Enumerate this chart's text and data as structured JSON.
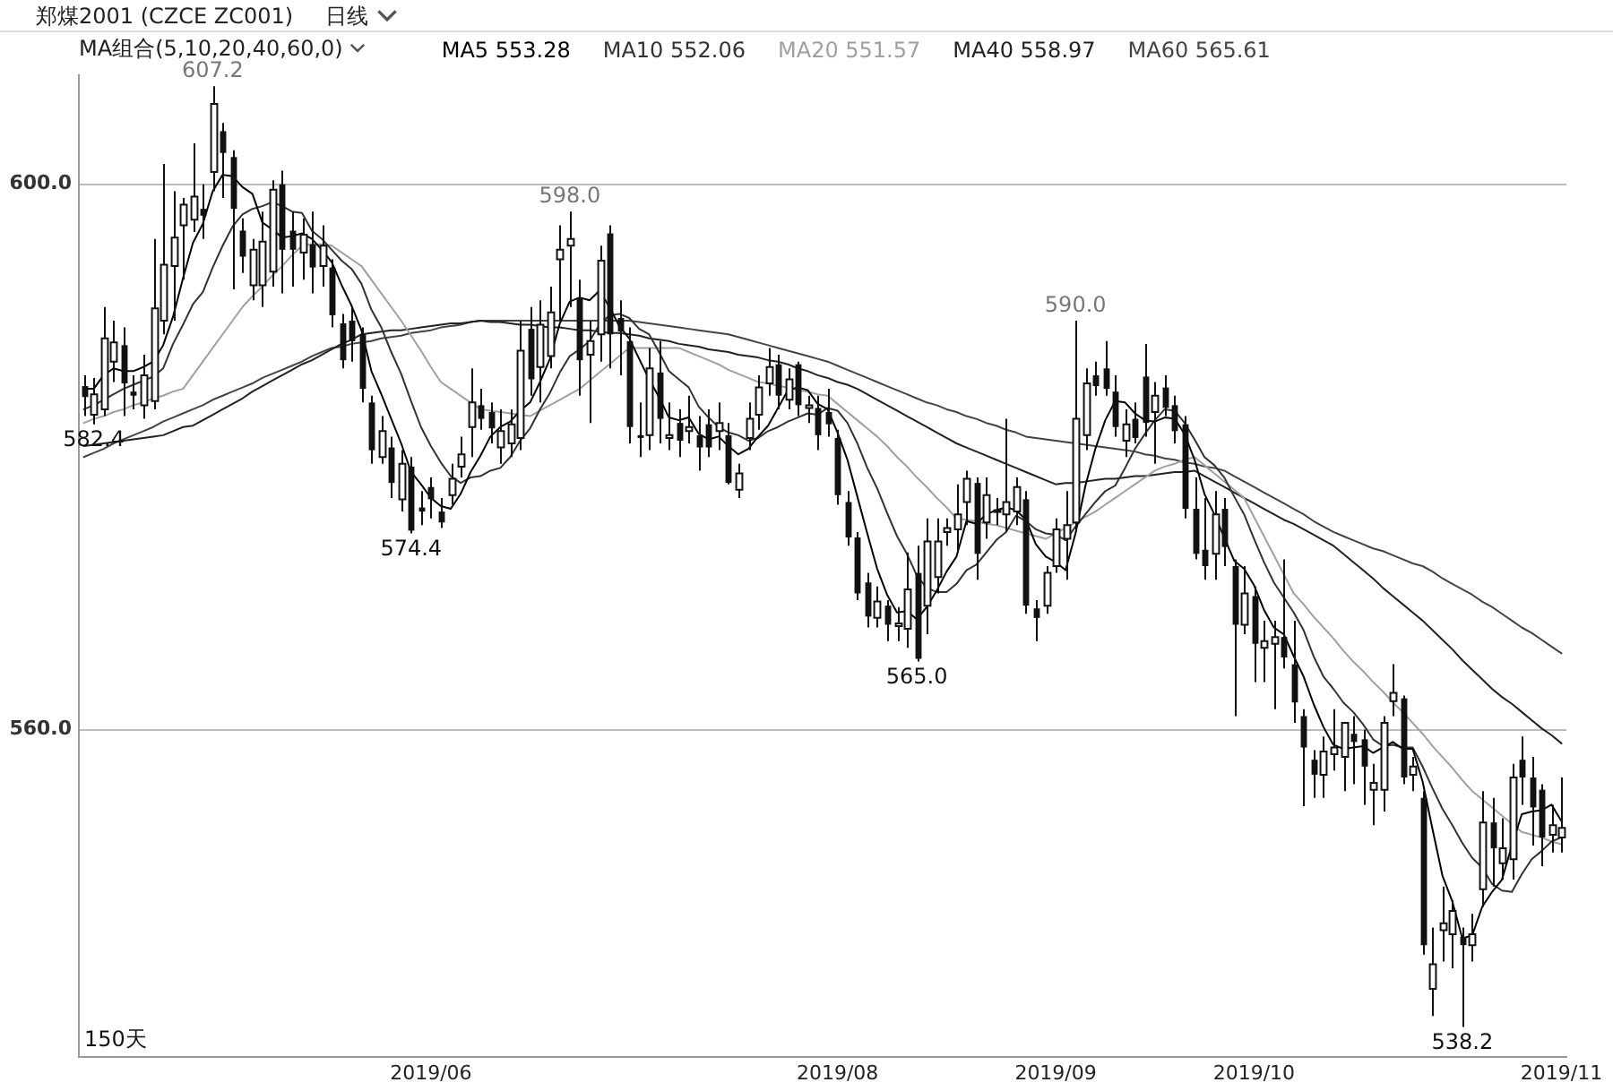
{
  "chart_data": {
    "type": "candlestick",
    "title": "郑煤2001 (CZCE ZC001)",
    "subtitle": "MA组合(5,10,20,40,60,0)",
    "categories": [
      null,
      null,
      null,
      null,
      null,
      null,
      null,
      null,
      null,
      null,
      null,
      null,
      null,
      null,
      null,
      null,
      null,
      null,
      null,
      null,
      null,
      null,
      null,
      null,
      null,
      null,
      null,
      null,
      null,
      null,
      null,
      null,
      null,
      null,
      null,
      "2019/06",
      null,
      null,
      null,
      null,
      null,
      null,
      null,
      null,
      null,
      null,
      null,
      null,
      null,
      null,
      null,
      null,
      null,
      null,
      null,
      null,
      null,
      null,
      null,
      null,
      null,
      null,
      null,
      null,
      null,
      null,
      null,
      null,
      null,
      null,
      null,
      null,
      null,
      null,
      null,
      null,
      "2019/08",
      null,
      null,
      null,
      null,
      null,
      null,
      null,
      null,
      null,
      null,
      null,
      null,
      null,
      null,
      null,
      null,
      null,
      null,
      null,
      null,
      null,
      "2019/09",
      null,
      null,
      null,
      null,
      null,
      null,
      null,
      null,
      null,
      null,
      null,
      null,
      null,
      null,
      null,
      null,
      null,
      null,
      null,
      "2019/10",
      null,
      null,
      null,
      null,
      null,
      null,
      null,
      null,
      null,
      null,
      null,
      null,
      null,
      null,
      null,
      null,
      null,
      null,
      null,
      null,
      null,
      null,
      null,
      null,
      null,
      null,
      null,
      null,
      null,
      null,
      "2019/11"
    ],
    "ohlc": [
      [
        585.2,
        586.0,
        583.0,
        584.4
      ],
      [
        583.1,
        585.8,
        582.4,
        584.6
      ],
      [
        583.5,
        591.0,
        583.0,
        588.7
      ],
      [
        587.0,
        590.0,
        585.5,
        588.4
      ],
      [
        588.2,
        589.5,
        583.0,
        585.4
      ],
      [
        584.8,
        586.0,
        583.5,
        584.5
      ],
      [
        583.8,
        587.5,
        582.8,
        586.0
      ],
      [
        584.1,
        596.0,
        583.5,
        590.9
      ],
      [
        590.0,
        601.5,
        589.0,
        594.1
      ],
      [
        594.0,
        599.5,
        590.0,
        596.1
      ],
      [
        597.0,
        599.0,
        593.0,
        598.5
      ],
      [
        597.4,
        603.0,
        596.5,
        599.1
      ],
      [
        598.2,
        600.0,
        596.0,
        597.7
      ],
      [
        600.9,
        607.2,
        599.5,
        605.9
      ],
      [
        603.9,
        604.5,
        599.0,
        602.3
      ],
      [
        602.0,
        602.5,
        592.3,
        598.2
      ],
      [
        596.6,
        597.5,
        593.5,
        594.7
      ],
      [
        592.6,
        596.0,
        591.5,
        595.2
      ],
      [
        592.6,
        598.0,
        591.0,
        595.8
      ],
      [
        593.6,
        600.3,
        592.5,
        599.6
      ],
      [
        600.0,
        601.0,
        592.0,
        595.2
      ],
      [
        596.6,
        598.0,
        592.5,
        595.2
      ],
      [
        595.0,
        597.5,
        593.0,
        596.3
      ],
      [
        595.6,
        598.0,
        592.0,
        593.9
      ],
      [
        594.0,
        597.0,
        592.5,
        595.5
      ],
      [
        593.9,
        594.5,
        589.5,
        590.4
      ],
      [
        589.8,
        590.5,
        586.5,
        587.1
      ],
      [
        590.0,
        591.0,
        587.0,
        588.5
      ],
      [
        589.0,
        589.5,
        584.0,
        585.0
      ],
      [
        584.0,
        584.5,
        579.5,
        580.5
      ],
      [
        580.0,
        583.0,
        579.5,
        581.9
      ],
      [
        580.7,
        581.5,
        577.0,
        578.1
      ],
      [
        576.9,
        580.5,
        576.0,
        579.5
      ],
      [
        579.3,
        580.0,
        574.4,
        574.6
      ],
      [
        576.3,
        577.5,
        575.0,
        576.0
      ],
      [
        577.8,
        578.5,
        575.5,
        576.9
      ],
      [
        576.0,
        577.0,
        574.8,
        575.2
      ],
      [
        577.2,
        579.5,
        576.5,
        578.4
      ],
      [
        579.3,
        581.5,
        578.5,
        580.2
      ],
      [
        582.2,
        586.5,
        580.0,
        584.0
      ],
      [
        583.8,
        585.0,
        582.0,
        582.8
      ],
      [
        583.3,
        584.0,
        581.0,
        582.1
      ],
      [
        580.7,
        583.5,
        579.5,
        581.9
      ],
      [
        581.0,
        583.5,
        580.0,
        582.4
      ],
      [
        581.4,
        590.0,
        580.5,
        587.8
      ],
      [
        589.4,
        591.0,
        584.5,
        585.7
      ],
      [
        586.6,
        591.5,
        584.0,
        589.7
      ],
      [
        587.4,
        592.5,
        586.5,
        590.6
      ],
      [
        594.5,
        597.0,
        590.0,
        595.2
      ],
      [
        595.5,
        598.0,
        591.0,
        596.0
      ],
      [
        591.7,
        593.0,
        584.5,
        587.1
      ],
      [
        587.5,
        590.0,
        582.5,
        588.5
      ],
      [
        589.0,
        595.5,
        587.0,
        594.4
      ],
      [
        596.4,
        597.0,
        586.5,
        589.0
      ],
      [
        590.2,
        591.5,
        586.0,
        589.2
      ],
      [
        588.5,
        589.5,
        581.0,
        582.2
      ],
      [
        581.6,
        584.0,
        580.0,
        581.4
      ],
      [
        581.6,
        588.0,
        580.5,
        586.5
      ],
      [
        586.2,
        588.5,
        581.0,
        582.8
      ],
      [
        581.4,
        584.0,
        580.5,
        581.6
      ],
      [
        582.5,
        583.5,
        580.0,
        581.2
      ],
      [
        581.9,
        584.5,
        581.0,
        582.2
      ],
      [
        581.6,
        583.0,
        579.0,
        580.7
      ],
      [
        582.4,
        583.5,
        580.0,
        580.7
      ],
      [
        581.9,
        584.0,
        580.5,
        582.5
      ],
      [
        581.6,
        582.5,
        578.0,
        578.1
      ],
      [
        577.6,
        579.5,
        577.0,
        578.8
      ],
      [
        581.4,
        584.0,
        580.5,
        582.8
      ],
      [
        583.1,
        586.0,
        582.0,
        585.1
      ],
      [
        585.4,
        588.0,
        584.5,
        586.6
      ],
      [
        586.8,
        587.5,
        583.5,
        584.5
      ],
      [
        584.2,
        586.5,
        583.5,
        585.7
      ],
      [
        586.8,
        587.0,
        583.0,
        583.8
      ],
      [
        583.6,
        584.5,
        582.5,
        583.8
      ],
      [
        583.6,
        584.5,
        580.5,
        581.6
      ],
      [
        583.3,
        585.0,
        581.5,
        582.4
      ],
      [
        581.4,
        582.0,
        576.5,
        577.2
      ],
      [
        576.7,
        577.5,
        573.5,
        574.1
      ],
      [
        574.1,
        574.5,
        569.5,
        570.0
      ],
      [
        570.8,
        571.5,
        567.5,
        568.3
      ],
      [
        568.2,
        570.5,
        567.5,
        569.4
      ],
      [
        569.1,
        569.5,
        566.5,
        567.7
      ],
      [
        567.6,
        569.0,
        566.5,
        567.8
      ],
      [
        567.4,
        573.0,
        566.0,
        570.3
      ],
      [
        571.5,
        573.5,
        565.0,
        565.2
      ],
      [
        569.1,
        575.5,
        567.0,
        573.8
      ],
      [
        571.2,
        575.5,
        570.0,
        573.8
      ],
      [
        574.5,
        575.5,
        573.5,
        574.8
      ],
      [
        574.7,
        578.0,
        573.0,
        575.8
      ],
      [
        576.7,
        579.0,
        575.0,
        578.4
      ],
      [
        578.1,
        578.5,
        571.0,
        572.9
      ],
      [
        575.2,
        578.5,
        574.0,
        577.2
      ],
      [
        576.0,
        577.0,
        575.0,
        576.1
      ],
      [
        575.8,
        582.8,
        574.5,
        576.7
      ],
      [
        576.0,
        578.5,
        575.0,
        577.8
      ],
      [
        576.9,
        577.5,
        568.5,
        569.1
      ],
      [
        568.9,
        569.5,
        566.5,
        568.2
      ],
      [
        569.1,
        572.0,
        568.5,
        571.5
      ],
      [
        572.0,
        575.5,
        571.5,
        574.7
      ],
      [
        574.0,
        577.5,
        571.0,
        575.0
      ],
      [
        575.2,
        590.0,
        574.5,
        582.8
      ],
      [
        581.6,
        586.5,
        580.5,
        585.4
      ],
      [
        586.0,
        587.0,
        584.5,
        585.2
      ],
      [
        586.5,
        588.5,
        584.5,
        585.0
      ],
      [
        584.8,
        586.0,
        581.5,
        582.2
      ],
      [
        581.2,
        583.5,
        580.0,
        582.4
      ],
      [
        582.8,
        584.0,
        581.0,
        581.4
      ],
      [
        585.9,
        588.3,
        581.5,
        582.5
      ],
      [
        583.3,
        585.5,
        579.5,
        584.5
      ],
      [
        585.1,
        586.0,
        583.0,
        583.6
      ],
      [
        583.8,
        584.5,
        581.0,
        581.9
      ],
      [
        582.4,
        583.0,
        575.5,
        576.2
      ],
      [
        576.2,
        578.5,
        572.5,
        572.9
      ],
      [
        573.2,
        577.0,
        571.0,
        572.0
      ],
      [
        572.9,
        577.5,
        571.0,
        575.8
      ],
      [
        576.2,
        577.0,
        572.0,
        573.4
      ],
      [
        572.0,
        572.5,
        561.0,
        567.7
      ],
      [
        567.7,
        572.0,
        567.0,
        570.0
      ],
      [
        569.8,
        570.5,
        563.5,
        566.3
      ],
      [
        566.0,
        568.0,
        563.5,
        566.5
      ],
      [
        566.3,
        568.0,
        561.5,
        566.8
      ],
      [
        566.8,
        572.5,
        564.5,
        565.3
      ],
      [
        564.8,
        568.0,
        560.5,
        562.0
      ],
      [
        561.0,
        561.5,
        554.4,
        558.7
      ],
      [
        557.8,
        558.5,
        555.0,
        556.7
      ],
      [
        556.7,
        559.5,
        555.0,
        558.4
      ],
      [
        558.2,
        561.5,
        557.0,
        558.7
      ],
      [
        558.0,
        560.5,
        555.5,
        560.5
      ],
      [
        559.7,
        561.0,
        556.0,
        559.1
      ],
      [
        559.3,
        560.0,
        554.5,
        557.3
      ],
      [
        555.6,
        557.5,
        553.0,
        556.1
      ],
      [
        555.6,
        561.0,
        554.0,
        560.5
      ],
      [
        562.1,
        564.8,
        561.0,
        562.7
      ],
      [
        562.3,
        562.5,
        556.0,
        556.5
      ],
      [
        556.7,
        558.0,
        555.5,
        557.3
      ],
      [
        555.0,
        555.5,
        543.5,
        544.2
      ],
      [
        541.0,
        545.5,
        539.0,
        542.8
      ],
      [
        545.3,
        548.5,
        543.0,
        545.8
      ],
      [
        545.0,
        547.5,
        542.5,
        546.7
      ],
      [
        544.8,
        545.5,
        538.2,
        544.2
      ],
      [
        544.2,
        546.5,
        543.0,
        545.0
      ],
      [
        548.3,
        555.5,
        547.0,
        553.2
      ],
      [
        553.2,
        555.0,
        548.5,
        551.3
      ],
      [
        550.2,
        553.5,
        549.0,
        551.3
      ],
      [
        550.5,
        557.5,
        549.0,
        556.5
      ],
      [
        557.8,
        559.5,
        554.5,
        556.5
      ],
      [
        556.5,
        558.0,
        551.5,
        554.3
      ],
      [
        555.6,
        556.0,
        550.0,
        552.1
      ],
      [
        552.3,
        554.5,
        551.0,
        553.0
      ],
      [
        552.1,
        556.5,
        551.0,
        552.8
      ]
    ],
    "series": [
      {
        "name": "MA5 553.28",
        "type": "line",
        "color": "#000000",
        "values": [
          585.0,
          585.0,
          586.0,
          586.5,
          586.3,
          586.3,
          586.6,
          587.0,
          588.2,
          590.3,
          593.1,
          595.7,
          597.1,
          599.5,
          600.7,
          600.6,
          599.8,
          599.3,
          597.2,
          596.7,
          596.1,
          596.2,
          596.4,
          596.0,
          595.2,
          594.3,
          592.6,
          591.1,
          589.3,
          586.3,
          584.6,
          582.8,
          581.0,
          578.9,
          578.0,
          577.0,
          576.4,
          576.2,
          577.3,
          578.9,
          580.1,
          581.5,
          582.2,
          582.6,
          583.4,
          584.0,
          585.5,
          587.2,
          589.8,
          591.4,
          591.7,
          591.5,
          592.2,
          591.0,
          589.6,
          588.7,
          587.2,
          585.7,
          584.4,
          582.9,
          582.7,
          582.9,
          581.7,
          581.3,
          581.5,
          580.8,
          580.2,
          580.6,
          581.5,
          582.3,
          583.6,
          584.9,
          585.1,
          584.9,
          583.9,
          583.5,
          581.8,
          579.8,
          577.1,
          574.4,
          571.8,
          569.9,
          568.6,
          568.7,
          568.1,
          569.0,
          570.2,
          571.6,
          572.7,
          575.3,
          575.1,
          575.8,
          576.1,
          576.3,
          576.1,
          575.4,
          573.6,
          572.7,
          572.3,
          571.7,
          574.4,
          577.9,
          580.6,
          582.7,
          584.1,
          584.0,
          583.2,
          582.7,
          582.6,
          582.9,
          582.8,
          581.7,
          579.8,
          577.3,
          575.8,
          574.1,
          572.4,
          571.8,
          570.6,
          568.8,
          567.5,
          567.0,
          565.4,
          563.9,
          561.9,
          560.2,
          558.9,
          558.6,
          558.7,
          558.8,
          558.3,
          558.7,
          559.1,
          558.6,
          558.6,
          556.2,
          552.7,
          549.3,
          547.4,
          544.7,
          544.9,
          547.0,
          548.1,
          549.0,
          551.5,
          553.8,
          554.0,
          554.1,
          554.5,
          553.3
        ]
      },
      {
        "name": "MA10 552.06",
        "type": "line",
        "color": "#333333",
        "values": [
          583.5,
          583.8,
          584.2,
          584.6,
          585.0,
          585.3,
          585.6,
          585.9,
          586.5,
          588.3,
          589.7,
          591.2,
          592.1,
          593.9,
          595.5,
          596.9,
          597.8,
          598.2,
          598.4,
          598.7,
          598.4,
          598.0,
          597.9,
          596.6,
          596.0,
          595.2,
          594.4,
          593.8,
          592.7,
          590.8,
          589.5,
          587.7,
          586.1,
          584.1,
          582.2,
          580.8,
          579.6,
          578.6,
          578.1,
          578.5,
          578.6,
          579.0,
          579.2,
          580.0,
          581.2,
          582.1,
          583.5,
          584.7,
          586.2,
          587.4,
          587.9,
          588.5,
          589.7,
          590.4,
          590.5,
          590.2,
          589.4,
          589.0,
          587.7,
          586.3,
          585.7,
          585.1,
          583.7,
          582.9,
          582.2,
          581.8,
          581.6,
          581.2,
          581.4,
          581.9,
          582.2,
          582.6,
          582.9,
          583.2,
          583.1,
          583.6,
          583.4,
          582.5,
          581.0,
          579.2,
          577.7,
          575.9,
          574.2,
          572.9,
          571.3,
          570.4,
          570.1,
          570.1,
          570.7,
          571.7,
          572.1,
          573.0,
          573.9,
          574.5,
          575.7,
          575.3,
          574.7,
          574.4,
          574.3,
          573.9,
          574.9,
          575.8,
          576.7,
          577.5,
          577.9,
          579.2,
          580.6,
          581.7,
          582.7,
          583.5,
          583.4,
          582.5,
          581.3,
          580.0,
          579.4,
          578.5,
          577.1,
          575.8,
          574.0,
          572.3,
          570.8,
          569.7,
          568.6,
          567.3,
          565.4,
          563.9,
          563.0,
          562.0,
          561.3,
          560.4,
          559.3,
          558.8,
          558.9,
          558.7,
          558.7,
          557.3,
          555.7,
          554.2,
          553.0,
          551.7,
          550.6,
          549.9,
          548.7,
          548.2,
          548.1,
          549.4,
          550.5,
          551.1,
          551.8,
          552.1
        ]
      },
      {
        "name": "MA20 551.57",
        "type": "line",
        "color": "#a0a0a0",
        "values": [
          582.5,
          582.8,
          583.0,
          583.3,
          583.5,
          583.8,
          584.0,
          584.3,
          584.5,
          584.8,
          585.0,
          586.0,
          587.0,
          588.0,
          589.0,
          590.0,
          591.0,
          591.8,
          592.5,
          593.3,
          594.0,
          594.8,
          595.5,
          595.6,
          595.6,
          595.5,
          595.0,
          594.5,
          594.0,
          593.0,
          592.0,
          591.0,
          590.0,
          588.9,
          587.8,
          586.6,
          585.5,
          585.0,
          584.5,
          584.0,
          583.5,
          583.4,
          583.3,
          583.2,
          583.1,
          583.0,
          583.4,
          583.8,
          584.2,
          584.6,
          585.0,
          585.6,
          586.2,
          586.8,
          587.4,
          588.0,
          588.0,
          588.0,
          588.0,
          588.0,
          588.0,
          587.7,
          587.4,
          587.1,
          586.8,
          586.4,
          586.1,
          585.8,
          585.5,
          585.4,
          585.2,
          585.1,
          584.9,
          584.8,
          584.6,
          584.5,
          583.9,
          583.3,
          582.7,
          582.1,
          581.5,
          580.8,
          580.0,
          579.3,
          578.5,
          577.8,
          577.0,
          576.3,
          575.5,
          575.4,
          575.3,
          575.1,
          575.0,
          574.8,
          574.6,
          574.4,
          574.2,
          574.0,
          574.4,
          574.8,
          575.2,
          575.6,
          576.0,
          576.5,
          577.0,
          577.5,
          578.0,
          578.5,
          579.0,
          579.3,
          579.5,
          579.8,
          580.0,
          579.4,
          578.8,
          578.2,
          577.6,
          577.0,
          575.6,
          574.2,
          572.8,
          571.4,
          570.0,
          569.2,
          568.3,
          567.5,
          566.7,
          565.8,
          565.0,
          564.3,
          563.5,
          562.8,
          562.0,
          561.3,
          560.5,
          559.7,
          558.8,
          558.0,
          557.2,
          556.3,
          555.5,
          554.9,
          554.3,
          553.7,
          553.1,
          552.5,
          552.3,
          552.1,
          551.8,
          551.6
        ]
      },
      {
        "name": "MA40 558.97",
        "type": "line",
        "color": "#222222",
        "values": [
          580.8,
          580.9,
          581.0,
          581.1,
          581.2,
          581.3,
          581.4,
          581.5,
          581.6,
          581.9,
          582.2,
          582.3,
          582.7,
          583.1,
          583.5,
          583.9,
          584.3,
          584.8,
          585.2,
          585.6,
          586.0,
          586.4,
          586.8,
          587.1,
          587.5,
          587.9,
          588.3,
          588.6,
          589.0,
          589.1,
          589.2,
          589.3,
          589.3,
          589.4,
          589.5,
          589.6,
          589.7,
          589.8,
          589.8,
          589.9,
          590.0,
          589.9,
          589.9,
          589.8,
          589.7,
          589.7,
          589.6,
          589.5,
          589.5,
          589.4,
          589.3,
          589.3,
          589.2,
          589.1,
          589.1,
          589.0,
          588.9,
          588.7,
          588.6,
          588.5,
          588.3,
          588.2,
          588.1,
          587.9,
          587.8,
          587.7,
          587.5,
          587.4,
          587.3,
          587.1,
          587.0,
          586.8,
          586.5,
          586.3,
          586.0,
          585.8,
          585.5,
          585.3,
          585.0,
          584.6,
          584.2,
          583.8,
          583.4,
          583.0,
          582.6,
          582.2,
          581.8,
          581.4,
          581.0,
          580.7,
          580.4,
          580.1,
          579.8,
          579.5,
          579.2,
          578.9,
          578.6,
          578.3,
          578.0,
          578.1,
          578.1,
          578.2,
          578.3,
          578.4,
          578.4,
          578.5,
          578.6,
          578.6,
          578.7,
          578.8,
          578.9,
          578.9,
          579.0,
          578.6,
          578.2,
          577.8,
          577.4,
          577.0,
          576.6,
          576.2,
          575.8,
          575.4,
          575.1,
          574.7,
          574.3,
          573.9,
          573.5,
          572.9,
          572.3,
          571.7,
          571.1,
          570.4,
          569.8,
          569.2,
          568.6,
          568.0,
          567.3,
          566.6,
          565.9,
          565.1,
          564.4,
          563.7,
          563.0,
          562.4,
          561.9,
          561.3,
          560.7,
          560.1,
          559.6,
          559.0
        ]
      },
      {
        "name": "MA60 565.61",
        "type": "line",
        "color": "#444444",
        "values": [
          580.0,
          580.3,
          580.6,
          581.0,
          581.3,
          581.6,
          581.9,
          582.2,
          582.6,
          582.9,
          583.2,
          583.5,
          583.8,
          584.2,
          584.5,
          584.8,
          585.1,
          585.4,
          585.8,
          586.1,
          586.4,
          586.7,
          587.0,
          587.4,
          587.7,
          588.0,
          588.1,
          588.3,
          588.4,
          588.5,
          588.7,
          588.8,
          588.9,
          589.1,
          589.2,
          589.3,
          589.5,
          589.6,
          589.7,
          589.9,
          590.0,
          590.0,
          590.0,
          590.0,
          590.0,
          590.0,
          590.0,
          590.0,
          590.0,
          590.0,
          590.0,
          590.0,
          590.0,
          590.0,
          590.0,
          590.0,
          589.9,
          589.8,
          589.7,
          589.6,
          589.5,
          589.4,
          589.3,
          589.2,
          589.1,
          589.0,
          588.8,
          588.6,
          588.4,
          588.2,
          588.0,
          587.8,
          587.6,
          587.4,
          587.2,
          587.0,
          586.7,
          586.4,
          586.1,
          585.8,
          585.5,
          585.2,
          584.9,
          584.6,
          584.3,
          584.0,
          583.8,
          583.5,
          583.3,
          583.0,
          582.8,
          582.5,
          582.3,
          582.0,
          581.8,
          581.5,
          581.4,
          581.3,
          581.2,
          581.1,
          581.0,
          580.9,
          580.8,
          580.7,
          580.6,
          580.5,
          580.4,
          580.2,
          580.1,
          579.9,
          579.8,
          579.6,
          579.5,
          579.3,
          579.2,
          579.0,
          578.6,
          578.2,
          577.8,
          577.4,
          577.0,
          576.6,
          576.2,
          575.8,
          575.3,
          574.9,
          574.5,
          574.2,
          573.9,
          573.6,
          573.3,
          573.1,
          572.8,
          572.5,
          572.2,
          572.0,
          571.6,
          571.1,
          570.7,
          570.3,
          569.9,
          569.4,
          569.0,
          568.5,
          568.0,
          567.5,
          567.1,
          566.6,
          566.1,
          565.6
        ]
      }
    ],
    "ylim": [
      536,
      608
    ],
    "yticks": [
      {
        "value": 560,
        "label": "560.0"
      },
      {
        "value": 600,
        "label": "600.0"
      }
    ],
    "grid": "y",
    "legend": "top left",
    "annotations": [
      "日线",
      "150天",
      {
        "text": "607.2",
        "y": 607.2
      },
      {
        "text": "582.4",
        "y": 582.4
      },
      {
        "text": "574.4",
        "y": 574.4
      },
      {
        "text": "598.0",
        "y": 598.0
      },
      {
        "text": "565.0",
        "y": 565.0
      },
      {
        "text": "590.0",
        "y": 590.0
      },
      {
        "text": "538.2",
        "y": 538.2
      }
    ]
  }
}
